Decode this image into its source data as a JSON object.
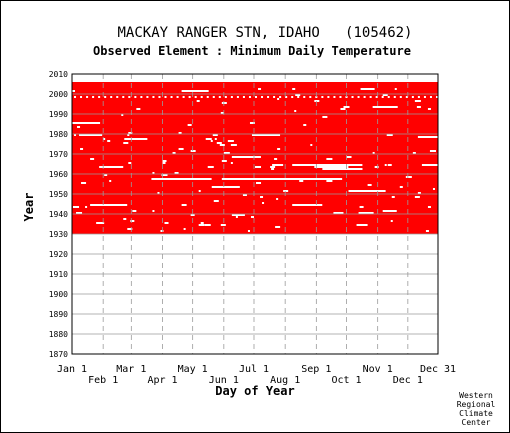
{
  "chart_data": {
    "type": "heatmap",
    "title": "MACKAY RANGER STN, IDAHO   (105462)",
    "subtitle": "Observed Element : Minimum Daily Temperature",
    "xlabel": "Day of Year",
    "ylabel": "Year",
    "x_ticks_top_row": [
      "Jan 1",
      "Mar 1",
      "May 1",
      "Jul 1",
      "Sep 1",
      "Nov 1",
      "Dec 31"
    ],
    "x_ticks_bottom_row": [
      "Feb 1",
      "Apr 1",
      "Jun 1",
      "Aug 1",
      "Oct 1",
      "Dec 1"
    ],
    "y_ticks": [
      "2010",
      "2000",
      "1990",
      "1980",
      "1970",
      "1960",
      "1950",
      "1940",
      "1930",
      "1920",
      "1910",
      "1900",
      "1890",
      "1880",
      "1870"
    ],
    "ylim": [
      1870,
      2010
    ],
    "xlim": [
      1,
      365
    ],
    "fill_color": "#ff0000",
    "data_range": {
      "year_start": 1930,
      "year_end": 2005
    },
    "grid": true,
    "missing_data_note": "white gaps within the filled band indicate missing daily observations"
  },
  "footer": {
    "line1": "Western",
    "line2": "Regional",
    "line3": "Climate",
    "line4": "Center"
  }
}
